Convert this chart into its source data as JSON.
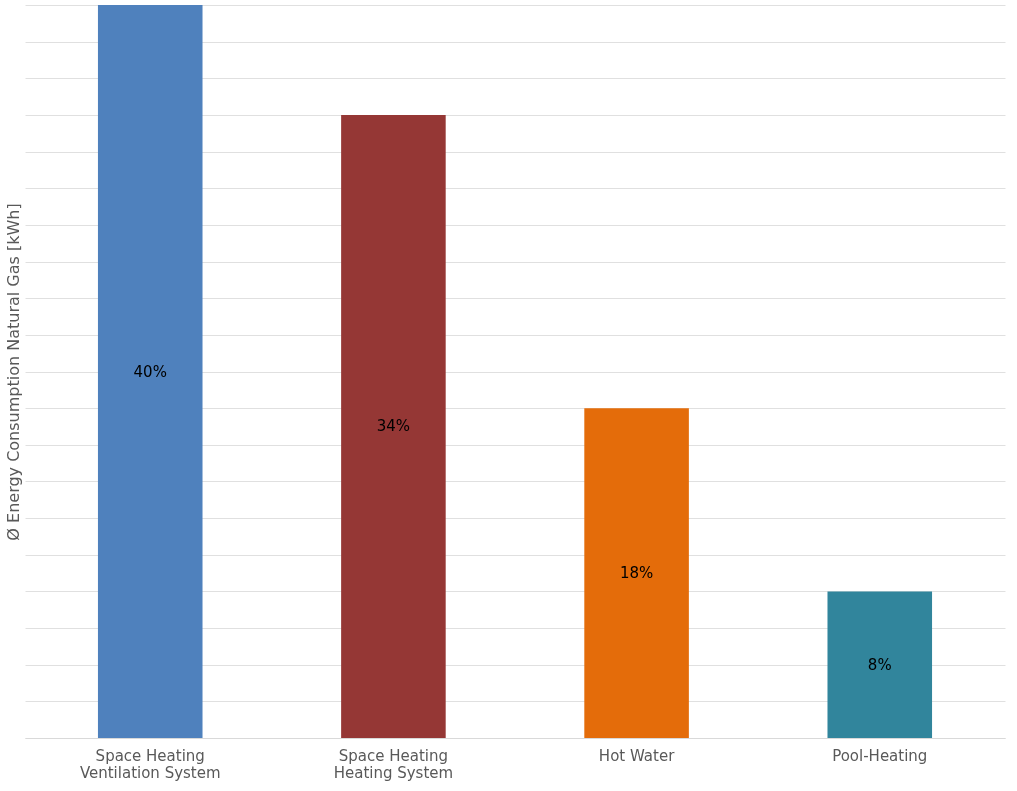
{
  "chart_data": {
    "type": "bar",
    "ylabel": "Ø Energy Consumption Natural Gas [kWh]",
    "grid": "y",
    "tick_labels": "x",
    "categories": [
      "Space Heating\nVentilation System",
      "Space Heating\nHeating System",
      "Hot Water",
      "Pool-Heating"
    ],
    "values": [
      40,
      34,
      18,
      8
    ],
    "colors": [
      "#4f81bd",
      "#953735",
      "#e46c0a",
      "#31859c"
    ],
    "value_labels": [
      "40%",
      "34%",
      "18%",
      "8%"
    ]
  }
}
